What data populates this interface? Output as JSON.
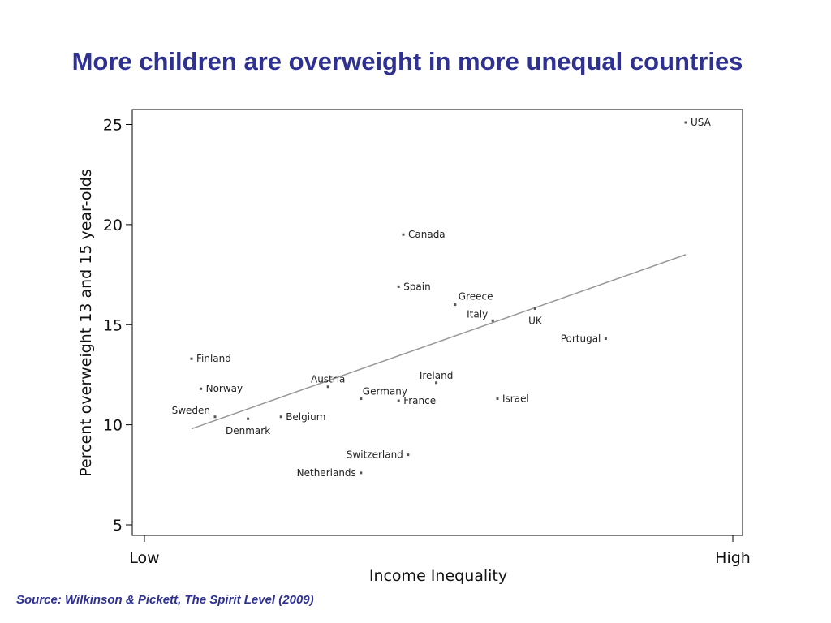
{
  "slide": {
    "title": "More children are overweight in more unequal countries",
    "source": "Source: Wilkinson & Pickett, The Spirit Level (2009)"
  },
  "colors": {
    "title": "#2E3192",
    "points": "#555555",
    "fit_line": "#999999",
    "axis": "#000000"
  },
  "chart_data": {
    "type": "scatter",
    "xlabel": "Income Inequality",
    "ylabel": "Percent overweight 13 and 15 year-olds",
    "x_tick_labels": [
      "Low",
      "High"
    ],
    "y_ticks": [
      5,
      10,
      15,
      20,
      25
    ],
    "ylim": [
      4.5,
      26
    ],
    "grid": false,
    "fit_line": {
      "from": [
        1.0,
        9.8
      ],
      "to": [
        11.5,
        18.5
      ]
    },
    "points": [
      {
        "label": "USA",
        "x": 11.5,
        "y": 25.1
      },
      {
        "label": "Canada",
        "x": 5.5,
        "y": 19.5
      },
      {
        "label": "Spain",
        "x": 5.4,
        "y": 16.9
      },
      {
        "label": "Greece",
        "x": 6.6,
        "y": 16.0
      },
      {
        "label": "Italy",
        "x": 7.4,
        "y": 15.2
      },
      {
        "label": "UK",
        "x": 8.3,
        "y": 15.8
      },
      {
        "label": "Portugal",
        "x": 9.8,
        "y": 14.3
      },
      {
        "label": "Finland",
        "x": 1.0,
        "y": 13.3
      },
      {
        "label": "Norway",
        "x": 1.2,
        "y": 11.8
      },
      {
        "label": "Austria",
        "x": 3.9,
        "y": 11.9
      },
      {
        "label": "Ireland",
        "x": 6.2,
        "y": 12.1
      },
      {
        "label": "Germany",
        "x": 4.6,
        "y": 11.3
      },
      {
        "label": "France",
        "x": 5.4,
        "y": 11.2
      },
      {
        "label": "Israel",
        "x": 7.5,
        "y": 11.3
      },
      {
        "label": "Sweden",
        "x": 1.5,
        "y": 10.4
      },
      {
        "label": "Denmark",
        "x": 2.2,
        "y": 10.3
      },
      {
        "label": "Belgium",
        "x": 2.9,
        "y": 10.4
      },
      {
        "label": "Switzerland",
        "x": 5.6,
        "y": 8.5
      },
      {
        "label": "Netherlands",
        "x": 4.6,
        "y": 7.6
      }
    ]
  }
}
